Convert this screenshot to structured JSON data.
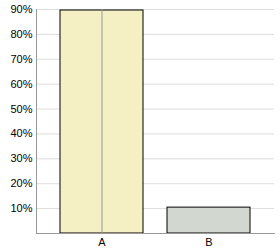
{
  "chart_data": {
    "type": "bar",
    "categories": [
      "A",
      "B"
    ],
    "values": [
      89.6,
      10.4
    ],
    "colors": [
      "#f5f0c4",
      "#d2d8cf"
    ],
    "ylim": [
      0,
      90
    ],
    "yticks": [
      {
        "value": 10,
        "label": "10%"
      },
      {
        "value": 20,
        "label": "20%"
      },
      {
        "value": 30,
        "label": "30%"
      },
      {
        "value": 40,
        "label": "40%"
      },
      {
        "value": 50,
        "label": "50%"
      },
      {
        "value": 60,
        "label": "60%"
      },
      {
        "value": 70,
        "label": "70%"
      },
      {
        "value": 80,
        "label": "80%"
      },
      {
        "value": 90,
        "label": "90%"
      }
    ],
    "grid": true
  }
}
